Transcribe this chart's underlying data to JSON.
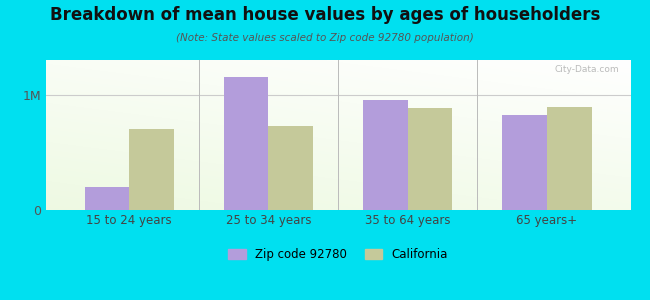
{
  "title": "Breakdown of mean house values by ages of householders",
  "subtitle": "(Note: State values scaled to Zip code 92780 population)",
  "categories": [
    "15 to 24 years",
    "25 to 34 years",
    "35 to 64 years",
    "65 years+"
  ],
  "zip_values": [
    200000,
    1150000,
    950000,
    820000
  ],
  "ca_values": [
    700000,
    730000,
    880000,
    890000
  ],
  "zip_color": "#b39ddb",
  "ca_color": "#c5c99a",
  "background_outer": "#00e0f0",
  "ylim": [
    0,
    1300000
  ],
  "yticks": [
    0,
    1000000
  ],
  "ytick_labels": [
    "0",
    "1M"
  ],
  "legend_zip": "Zip code 92780",
  "legend_ca": "California",
  "bar_width": 0.32
}
